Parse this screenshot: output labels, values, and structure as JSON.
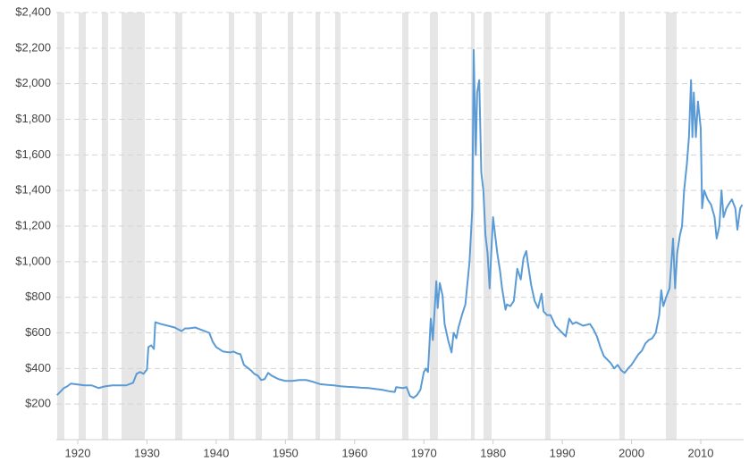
{
  "chart_data": {
    "type": "line",
    "xlim": [
      1916.9,
      2016.2
    ],
    "xticks": [
      1920,
      1930,
      1940,
      1950,
      1960,
      1970,
      1980,
      1990,
      2000,
      2010
    ],
    "ylim": [
      0,
      2400
    ],
    "yticks": [
      {
        "value": 200,
        "label": "$200"
      },
      {
        "value": 400,
        "label": "$400"
      },
      {
        "value": 600,
        "label": "$600"
      },
      {
        "value": 800,
        "label": "$800"
      },
      {
        "value": 1000,
        "label": "$1,000"
      },
      {
        "value": 1200,
        "label": "$1,200"
      },
      {
        "value": 1400,
        "label": "$1,400"
      },
      {
        "value": 1600,
        "label": "$1,600"
      },
      {
        "value": 1800,
        "label": "$1,800"
      },
      {
        "value": 2000,
        "label": "$2,000"
      },
      {
        "value": 2200,
        "label": "$2,200"
      },
      {
        "value": 2400,
        "label": "$2,400"
      }
    ],
    "grid": true,
    "shaded_regions": [
      [
        1917.03,
        1918.06
      ],
      [
        1920.13,
        1921.16
      ],
      [
        1923.49,
        1924.39
      ],
      [
        1926.33,
        1929.68
      ],
      [
        1934.07,
        1935.11
      ],
      [
        1941.82,
        1942.6
      ],
      [
        1945.69,
        1946.6
      ],
      [
        1950.34,
        1951.12
      ],
      [
        1954.34,
        1954.99
      ],
      [
        1957.18,
        1957.96
      ],
      [
        1966.87,
        1967.77
      ],
      [
        1970.87,
        1972.03
      ],
      [
        1976.81,
        1977.33
      ],
      [
        1978.62,
        1979.78
      ],
      [
        1987.53,
        1988.3
      ],
      [
        1998.25,
        1999.02
      ],
      [
        2004.96,
        2006.51
      ]
    ],
    "shade_color": "#e6e6e6",
    "x": [
      1917,
      1918,
      1918.5,
      1919,
      1920,
      1921,
      1922,
      1923,
      1924,
      1925,
      1926,
      1927,
      1928,
      1928.5,
      1929,
      1929.5,
      1930,
      1930.2,
      1930.6,
      1931,
      1931.2,
      1932,
      1933,
      1934,
      1935,
      1935.5,
      1936,
      1937,
      1938,
      1939,
      1939.5,
      1940,
      1941,
      1942,
      1942.5,
      1943,
      1943.5,
      1944,
      1945,
      1945.5,
      1946,
      1946.5,
      1947,
      1947.5,
      1948,
      1949,
      1950,
      1951,
      1952,
      1953,
      1954,
      1955,
      1956,
      1957,
      1958,
      1959,
      1960,
      1961,
      1962,
      1963,
      1964,
      1965,
      1965.8,
      1966,
      1967,
      1967.5,
      1968,
      1968.5,
      1969,
      1969.5,
      1970,
      1970.3,
      1970.6,
      1971,
      1971.3,
      1971.8,
      1972,
      1972.3,
      1972.7,
      1973,
      1973.5,
      1974,
      1974.3,
      1974.7,
      1975,
      1975.5,
      1976,
      1976.3,
      1976.6,
      1977,
      1977.2,
      1977.5,
      1977.7,
      1978,
      1978.3,
      1978.6,
      1978.9,
      1979.2,
      1979.5,
      1979.8,
      1980,
      1980.3,
      1980.6,
      1981,
      1981.3,
      1981.8,
      1982,
      1982.5,
      1983,
      1983.5,
      1984,
      1984.4,
      1984.8,
      1985,
      1985.5,
      1986,
      1986.5,
      1987,
      1987.3,
      1987.8,
      1988.3,
      1989,
      1989.5,
      1990,
      1990.5,
      1991,
      1991.5,
      1992,
      1993,
      1994,
      1994.5,
      1995,
      1995.5,
      1996,
      1996.5,
      1997,
      1997.5,
      1998,
      1998.5,
      1999,
      1999.5,
      2000,
      2000.5,
      2001,
      2001.5,
      2002,
      2002.5,
      2003,
      2003.5,
      2004,
      2004.3,
      2004.6,
      2005,
      2005.5,
      2006,
      2006.3,
      2006.6,
      2007,
      2007.3,
      2007.6,
      2008,
      2008.3,
      2008.6,
      2008.8,
      2009,
      2009.3,
      2009.6,
      2010,
      2010.2,
      2010.5,
      2011,
      2011.5,
      2012,
      2012.3,
      2012.7,
      2013,
      2013.3,
      2013.7,
      2014,
      2014.5,
      2015,
      2015.3,
      2015.7,
      2016
    ],
    "series": [
      {
        "color": "#5b9bd5",
        "values": [
          250,
          290,
          300,
          315,
          310,
          305,
          305,
          290,
          300,
          305,
          305,
          305,
          320,
          370,
          380,
          370,
          395,
          520,
          530,
          510,
          660,
          650,
          640,
          630,
          610,
          625,
          625,
          630,
          615,
          600,
          550,
          520,
          495,
          490,
          495,
          485,
          480,
          420,
          390,
          370,
          360,
          335,
          340,
          375,
          360,
          340,
          330,
          330,
          335,
          335,
          325,
          312,
          308,
          305,
          300,
          297,
          295,
          292,
          290,
          285,
          280,
          272,
          268,
          295,
          290,
          295,
          245,
          235,
          250,
          280,
          380,
          400,
          380,
          680,
          560,
          890,
          740,
          880,
          810,
          650,
          560,
          490,
          600,
          570,
          630,
          700,
          760,
          880,
          1000,
          1300,
          2190,
          1600,
          1950,
          2020,
          1500,
          1400,
          1150,
          1050,
          850,
          1100,
          1250,
          1150,
          1050,
          950,
          850,
          730,
          760,
          750,
          780,
          960,
          900,
          1020,
          1060,
          1000,
          870,
          780,
          740,
          820,
          720,
          700,
          700,
          640,
          620,
          600,
          580,
          680,
          650,
          660,
          640,
          650,
          620,
          580,
          520,
          470,
          450,
          430,
          400,
          420,
          390,
          375,
          400,
          420,
          450,
          480,
          500,
          540,
          560,
          570,
          600,
          700,
          840,
          750,
          800,
          850,
          1130,
          850,
          1050,
          1150,
          1200,
          1400,
          1550,
          1700,
          2020,
          1700,
          1950,
          1700,
          1900,
          1750,
          1300,
          1400,
          1350,
          1320,
          1250,
          1130,
          1200,
          1400,
          1250,
          1300,
          1320,
          1350,
          1300,
          1180,
          1300,
          1320
        ]
      }
    ]
  }
}
